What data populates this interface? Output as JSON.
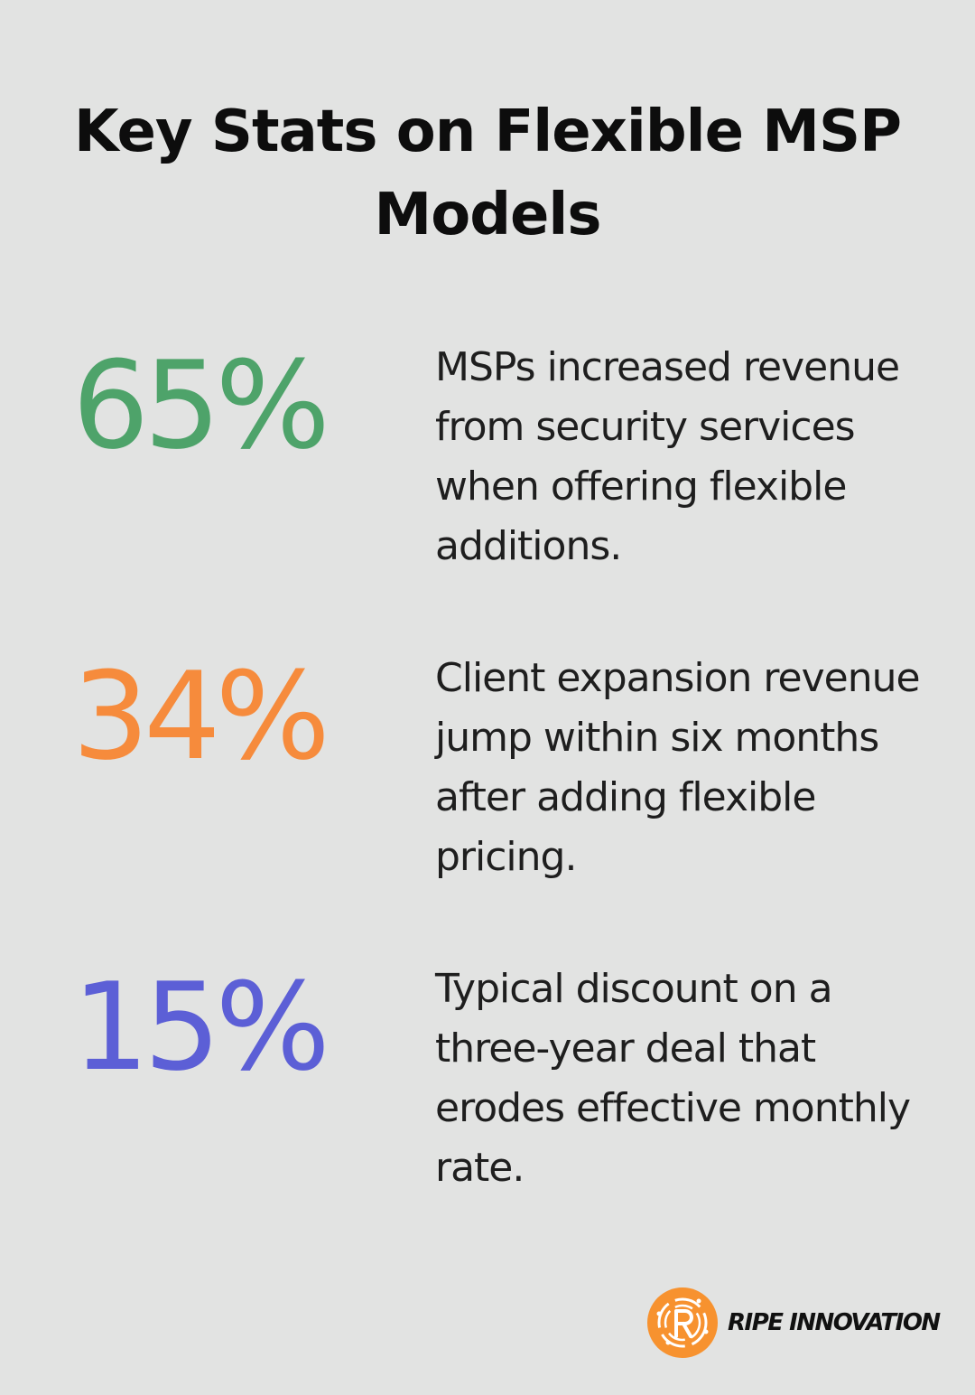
{
  "title": "Key Stats on Flexible MSP Models",
  "stats": [
    {
      "value": "65%",
      "description": "MSPs increased revenue from security services when offering flexible additions.",
      "color": "#4ea36a"
    },
    {
      "value": "34%",
      "description": "Client expansion revenue jump within six months after adding flexible pricing.",
      "color": "#f68b3c"
    },
    {
      "value": "15%",
      "description": "Typical discount on a three-year deal that erodes effective monthly rate.",
      "color": "#5c5fd6"
    }
  ],
  "brand": {
    "name": "RIPE INNOVATION",
    "icon": "ripe-innovation-logo-icon",
    "color": "#f7922f"
  },
  "background_color": "#e2e3e2"
}
